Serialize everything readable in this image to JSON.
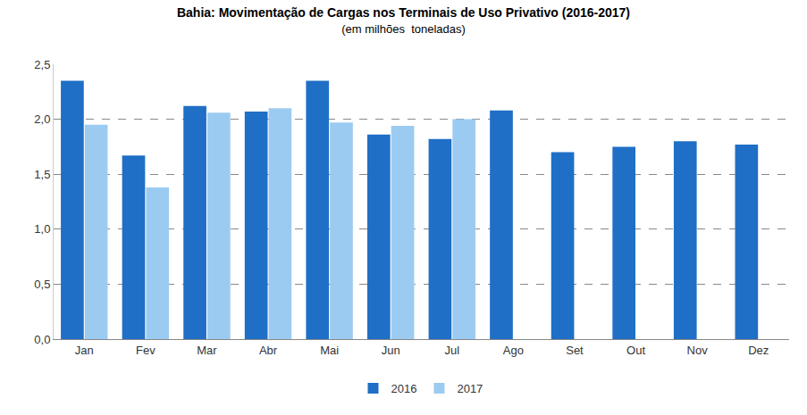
{
  "chart_data": {
    "type": "bar",
    "title": "Bahia: Movimentação de Cargas nos Terminais de Uso Privativo (2016-2017)",
    "subtitle": "(em milhões  toneladas)",
    "categories": [
      "Jan",
      "Fev",
      "Mar",
      "Abr",
      "Mai",
      "Jun",
      "Jul",
      "Ago",
      "Set",
      "Out",
      "Nov",
      "Dez"
    ],
    "series": [
      {
        "name": "2016",
        "color": "#1f6fc6",
        "values": [
          2.35,
          1.67,
          2.12,
          2.07,
          2.35,
          1.86,
          1.82,
          2.08,
          1.7,
          1.75,
          1.8,
          1.77
        ]
      },
      {
        "name": "2017",
        "color": "#9ccbf1",
        "values": [
          1.95,
          1.38,
          2.06,
          2.1,
          1.97,
          1.94,
          2.0,
          null,
          null,
          null,
          null,
          null
        ]
      }
    ],
    "ylim": [
      0,
      2.5
    ],
    "yticks": [
      {
        "value": 0,
        "label": "0,0"
      },
      {
        "value": 0.5,
        "label": "0,5"
      },
      {
        "value": 1,
        "label": "1,0"
      },
      {
        "value": 1.5,
        "label": "1,5"
      },
      {
        "value": 2,
        "label": "2,0"
      },
      {
        "value": 2.5,
        "label": "2,5"
      }
    ],
    "grid": true,
    "legend": "bottom"
  }
}
